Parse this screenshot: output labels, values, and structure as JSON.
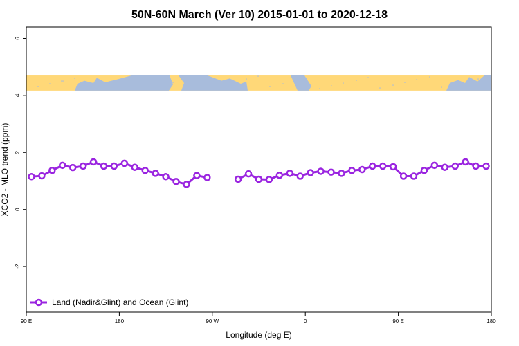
{
  "chart_data": {
    "type": "line",
    "title": "50N-60N March (Ver 10)   2015-01-01 to 2020-12-18",
    "xlabel": "Longitude (deg E)",
    "ylabel": "XCO2 - MLO trend (ppm)",
    "xlim": [
      90,
      540
    ],
    "ylim": [
      -3.6,
      6.4
    ],
    "x_ticks": [
      {
        "value": 90,
        "label": "90 E"
      },
      {
        "value": 180,
        "label": "180"
      },
      {
        "value": 270,
        "label": "90 W"
      },
      {
        "value": 360,
        "label": "0"
      },
      {
        "value": 450,
        "label": "90 E"
      },
      {
        "value": 540,
        "label": "180"
      }
    ],
    "y_ticks": [
      {
        "value": -2,
        "label": "-2"
      },
      {
        "value": 0,
        "label": "0"
      },
      {
        "value": 2,
        "label": "2"
      },
      {
        "value": 4,
        "label": "4"
      },
      {
        "value": 6,
        "label": "6"
      }
    ],
    "map_strip": {
      "ymin": 4.17,
      "ymax": 4.7,
      "land_color": "#ffd878",
      "ocean_color": "#a8bcdc"
    },
    "series": [
      {
        "name": "Land (Nadir&Glint) and Ocean (Glint)",
        "color": "#9a24e0",
        "segments": [
          {
            "x": [
              95,
              105,
              115,
              125,
              135,
              145,
              155,
              165,
              175,
              185,
              195,
              205,
              215,
              225,
              235,
              245,
              255,
              265,
              275
            ],
            "y": [
              1.15,
              1.18,
              1.37,
              1.55,
              1.47,
              1.52,
              1.67,
              1.52,
              1.52,
              1.62,
              1.48,
              1.37,
              1.27,
              1.15,
              0.98,
              0.88,
              1.19,
              1.12,
              null
            ]
          },
          {
            "x": [
              295,
              305,
              315,
              325,
              335,
              345,
              355,
              365,
              375,
              385,
              395,
              405,
              415,
              425,
              435,
              445,
              455,
              465,
              475,
              485,
              495,
              505,
              515,
              525,
              535
            ],
            "y": [
              1.06,
              1.25,
              1.06,
              1.05,
              1.2,
              1.27,
              1.17,
              1.29,
              1.34,
              1.31,
              1.27,
              1.37,
              1.4,
              1.52,
              1.52,
              1.5,
              1.17,
              1.17,
              1.37,
              1.55,
              1.48,
              1.52,
              1.67,
              1.52,
              1.52
            ]
          }
        ]
      }
    ],
    "legend": {
      "position": "bottom-left"
    }
  }
}
